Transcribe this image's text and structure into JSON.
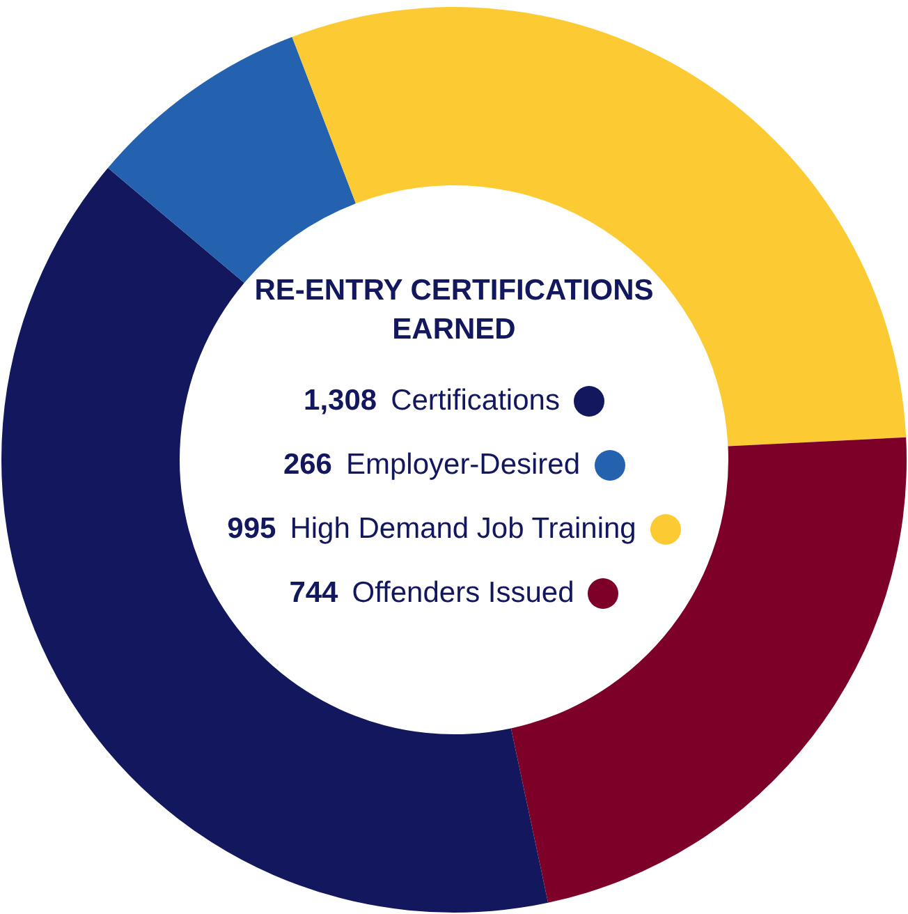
{
  "chart_data": {
    "type": "donut",
    "title": "RE-ENTRY CERTIFICATIONS EARNED",
    "categories": [
      "Certifications",
      "Employer-Desired",
      "High Demand Job Training",
      "Offenders Issued"
    ],
    "values": [
      1308,
      266,
      995,
      744
    ],
    "value_labels": [
      "1,308",
      "266",
      "995",
      "744"
    ],
    "colors": [
      "#13175e",
      "#2461ae",
      "#fccb33",
      "#7d0028"
    ],
    "legend": "center"
  }
}
